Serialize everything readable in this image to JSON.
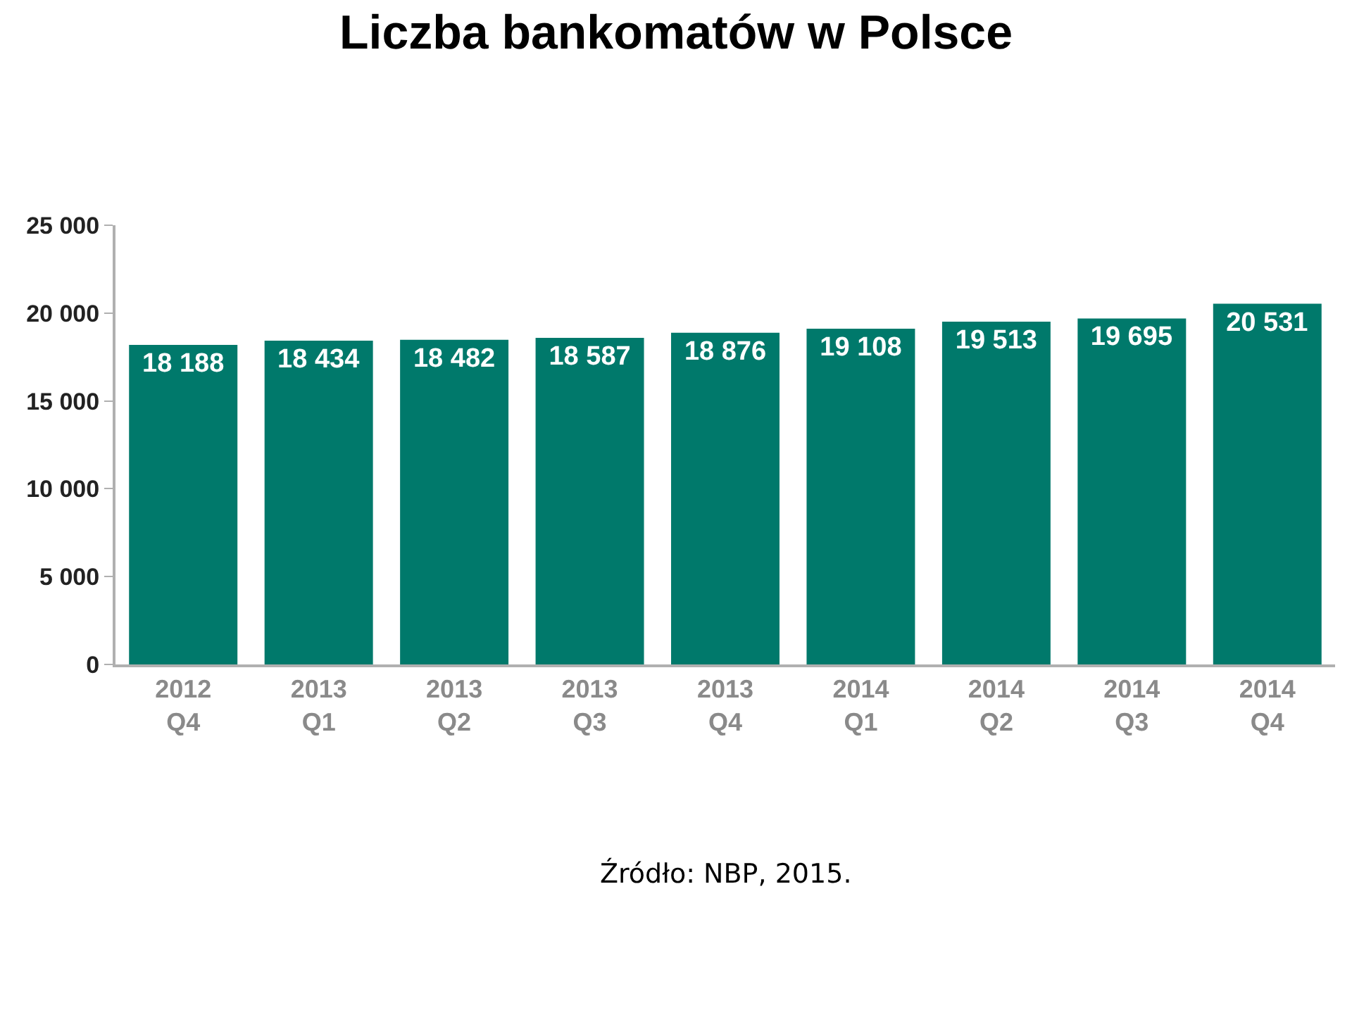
{
  "chart_data": {
    "type": "bar",
    "title": "Liczba bankomatów w Polsce",
    "categories": [
      "2012\nQ4",
      "2013\nQ1",
      "2013\nQ2",
      "2013\nQ3",
      "2013\nQ4",
      "2014\nQ1",
      "2014\nQ2",
      "2014\nQ3",
      "2014\nQ4"
    ],
    "values": [
      18188,
      18434,
      18482,
      18587,
      18876,
      19108,
      19513,
      19695,
      20531
    ],
    "value_labels": [
      "18 188",
      "18 434",
      "18 482",
      "18 587",
      "18 876",
      "19 108",
      "19 513",
      "19 695",
      "20 531"
    ],
    "color": "#00796b",
    "ylim": [
      0,
      25000
    ],
    "yticks": [
      {
        "value": 0,
        "label": "0"
      },
      {
        "value": 5000,
        "label": "5 000"
      },
      {
        "value": 10000,
        "label": "10 000"
      },
      {
        "value": 15000,
        "label": "15 000"
      },
      {
        "value": 20000,
        "label": "20 000"
      },
      {
        "value": 25000,
        "label": "25 000"
      }
    ],
    "annotations": [
      "Źródło: NBP, 2015."
    ]
  }
}
